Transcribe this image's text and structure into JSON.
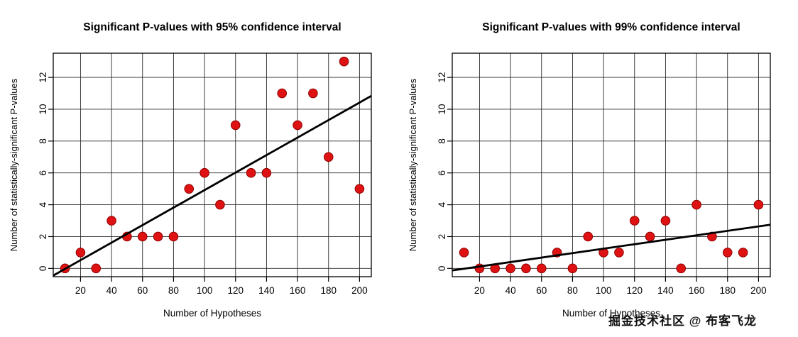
{
  "watermark": "掘金技术社区 @ 布客飞龙",
  "chart_data": [
    {
      "type": "scatter",
      "title": "Significant P-values with 95% confidence interval",
      "xlabel": "Number of Hypotheses",
      "ylabel": "Number of statistically-significant P-values",
      "x": [
        10,
        20,
        30,
        40,
        50,
        60,
        70,
        80,
        90,
        100,
        110,
        120,
        130,
        140,
        150,
        160,
        170,
        180,
        190,
        200
      ],
      "y": [
        0,
        1,
        0,
        3,
        2,
        2,
        2,
        2,
        5,
        6,
        4,
        9,
        6,
        6,
        11,
        9,
        11,
        7,
        13,
        5
      ],
      "trend_line": {
        "intercept": -0.58,
        "slope": 0.055
      },
      "xlim": [
        2.4,
        207.6
      ],
      "ylim": [
        -0.52,
        13.52
      ],
      "xticks": [
        20,
        40,
        60,
        80,
        100,
        120,
        140,
        160,
        180,
        200
      ],
      "yticks": [
        0,
        2,
        4,
        6,
        8,
        10,
        12
      ],
      "grid": true,
      "legend": "none",
      "point_color": "#de1212",
      "point_stroke": "#8f0000",
      "line_color": "#000000",
      "grid_color": "#2a2a2a"
    },
    {
      "type": "scatter",
      "title": "Significant P-values with 99% confidence interval",
      "xlabel": "Number of Hypotheses",
      "ylabel": "Number of statistically-significant P-values",
      "x": [
        10,
        20,
        30,
        40,
        50,
        60,
        70,
        80,
        90,
        100,
        110,
        120,
        130,
        140,
        150,
        160,
        170,
        180,
        190,
        200
      ],
      "y": [
        1,
        0,
        0,
        0,
        0,
        0,
        1,
        0,
        2,
        1,
        1,
        3,
        2,
        3,
        0,
        4,
        2,
        1,
        1,
        4
      ],
      "trend_line": {
        "intercept": -0.16,
        "slope": 0.014
      },
      "xlim": [
        2.4,
        207.6
      ],
      "ylim": [
        -0.52,
        13.52
      ],
      "xticks": [
        20,
        40,
        60,
        80,
        100,
        120,
        140,
        160,
        180,
        200
      ],
      "yticks": [
        0,
        2,
        4,
        6,
        8,
        10,
        12
      ],
      "grid": true,
      "legend": "none",
      "point_color": "#de1212",
      "point_stroke": "#8f0000",
      "line_color": "#000000",
      "grid_color": "#2a2a2a"
    }
  ]
}
